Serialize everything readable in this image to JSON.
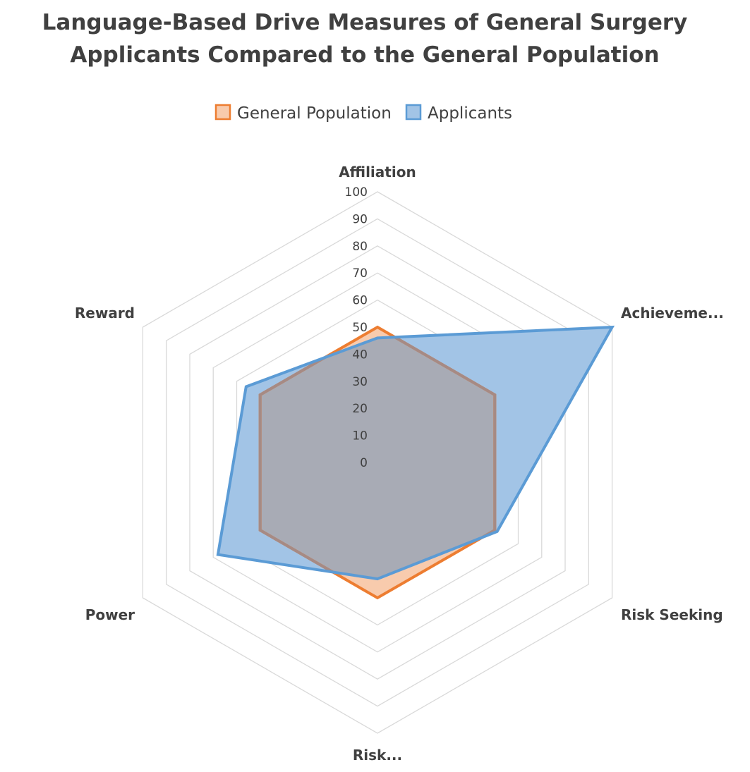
{
  "chart_data": {
    "type": "radar",
    "title_lines": [
      "Language-Based Drive Measures of General Surgery",
      "Applicants Compared to the General Population"
    ],
    "categories": [
      "Affiliation",
      "Achieveme...",
      "Risk Seeking",
      "Risk...",
      "Power",
      "Reward"
    ],
    "series": [
      {
        "name": "General Population",
        "values": [
          50,
          50,
          50,
          50,
          50,
          50
        ],
        "stroke": "#ED7D31",
        "fill": "#F8CBAD"
      },
      {
        "name": "Applicants",
        "values": [
          46,
          100,
          51,
          43,
          68,
          56
        ],
        "stroke": "#5B9BD5",
        "fill": "#A2C4E6"
      }
    ],
    "r_ticks": [
      0,
      10,
      20,
      30,
      40,
      50,
      60,
      70,
      80,
      90,
      100
    ],
    "r_range": [
      0,
      100
    ],
    "grid": true,
    "grid_color": "#D9D9D9",
    "overlap_color": "#A8ABB5",
    "legend_position": "top"
  }
}
